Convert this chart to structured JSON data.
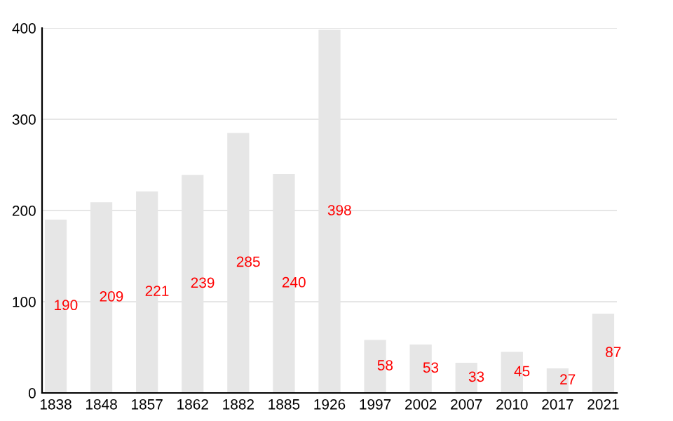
{
  "chart_data": {
    "type": "bar",
    "categories": [
      "1838",
      "1848",
      "1857",
      "1862",
      "1882",
      "1885",
      "1926",
      "1997",
      "2002",
      "2007",
      "2010",
      "2017",
      "2021"
    ],
    "values": [
      190,
      209,
      221,
      239,
      285,
      240,
      398,
      58,
      53,
      33,
      45,
      27,
      87
    ],
    "color": "#e6e6e6",
    "data_labels": true,
    "ylim": [
      0,
      400
    ],
    "yticks": [
      0,
      100,
      200,
      300,
      400
    ],
    "grid": "y",
    "legend": false
  }
}
